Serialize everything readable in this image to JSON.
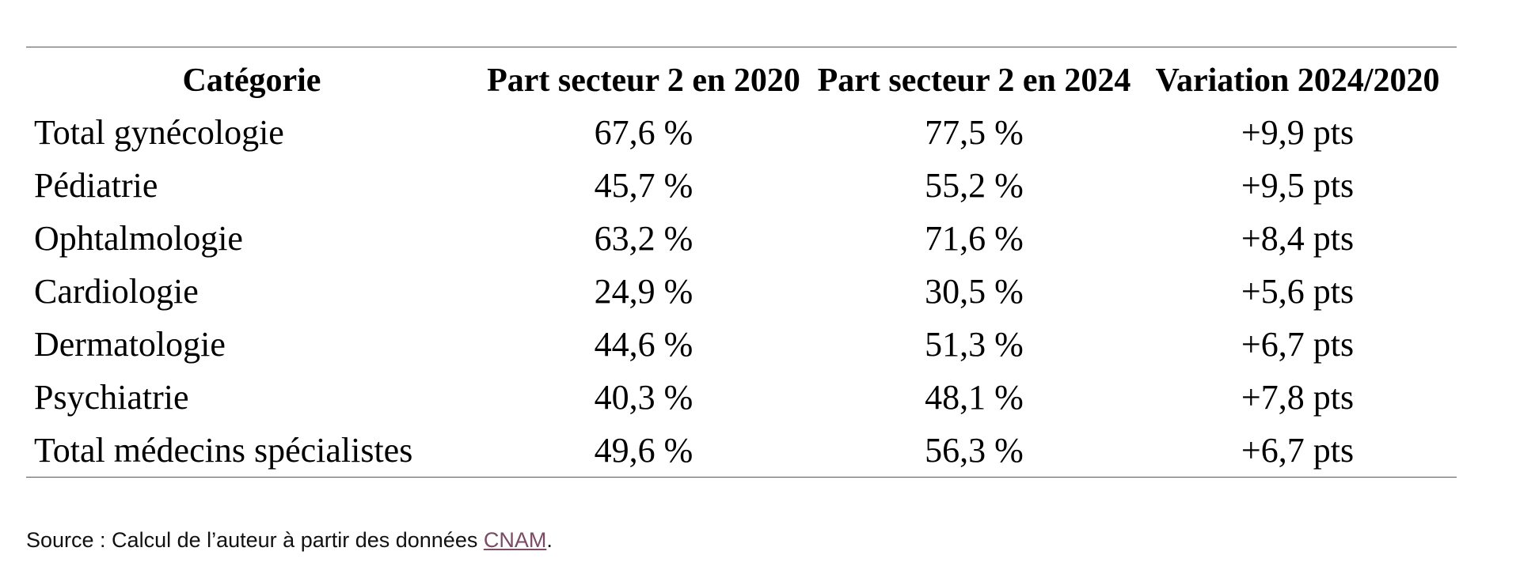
{
  "table": {
    "headers": [
      "Catégorie",
      "Part secteur 2 en 2020",
      "Part secteur 2 en 2024",
      "Variation 2024/2020"
    ],
    "rows": [
      [
        "Total gynécologie",
        "67,6 %",
        "77,5 %",
        "+9,9 pts"
      ],
      [
        "Pédiatrie",
        "45,7 %",
        "55,2 %",
        "+9,5 pts"
      ],
      [
        "Ophtalmologie",
        "63,2 %",
        "71,6 %",
        "+8,4 pts"
      ],
      [
        "Cardiologie",
        "24,9 %",
        "30,5 %",
        "+5,6 pts"
      ],
      [
        "Dermatologie",
        "44,6 %",
        "51,3 %",
        "+6,7 pts"
      ],
      [
        "Psychiatrie",
        "40,3 %",
        "48,1 %",
        "+7,8 pts"
      ],
      [
        "Total médecins spécialistes",
        "49,6 %",
        "56,3 %",
        "+6,7 pts"
      ]
    ]
  },
  "source": {
    "prefix": "Source : Calcul de l’auteur à partir des données ",
    "link_text": "CNAM",
    "suffix": "."
  },
  "colors": {
    "link": "#7b4a64",
    "rule": "#555555"
  }
}
